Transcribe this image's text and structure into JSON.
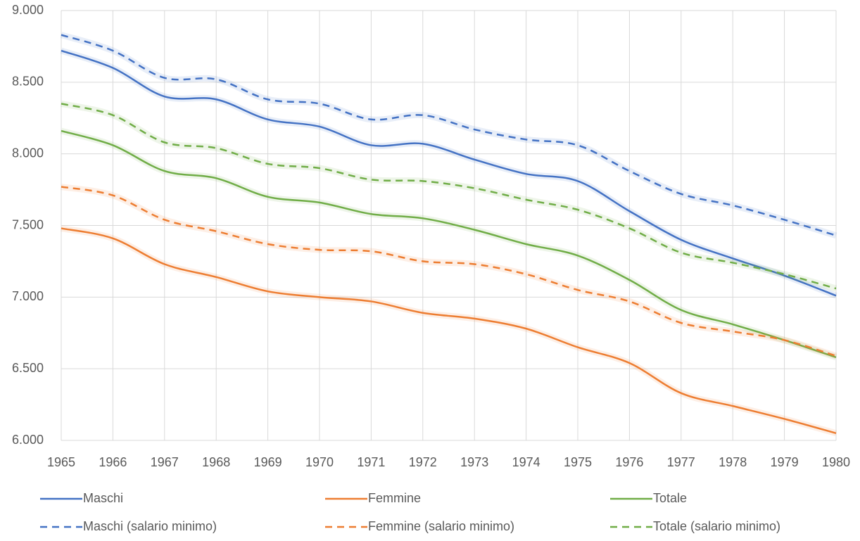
{
  "chart_data": {
    "type": "line",
    "categories": [
      "1965",
      "1966",
      "1967",
      "1968",
      "1969",
      "1970",
      "1971",
      "1972",
      "1973",
      "1974",
      "1975",
      "1976",
      "1977",
      "1978",
      "1979",
      "1980"
    ],
    "ylim": [
      6000,
      9000
    ],
    "yticks": [
      {
        "value": 6000,
        "label": "6.000"
      },
      {
        "value": 6500,
        "label": "6.500"
      },
      {
        "value": 7000,
        "label": "7.000"
      },
      {
        "value": 7500,
        "label": "7.500"
      },
      {
        "value": 8000,
        "label": "8.000"
      },
      {
        "value": 8500,
        "label": "8.500"
      },
      {
        "value": 9000,
        "label": "9.000"
      }
    ],
    "grid": true,
    "legend": "bottom",
    "series": [
      {
        "name": "Maschi",
        "color": "#4472c4",
        "dashed": false,
        "values": [
          8720,
          8600,
          8400,
          8380,
          8240,
          8190,
          8060,
          8070,
          7960,
          7860,
          7810,
          7600,
          7400,
          7270,
          7150,
          7010
        ]
      },
      {
        "name": "Femmine",
        "color": "#ed7d31",
        "dashed": false,
        "values": [
          7480,
          7410,
          7230,
          7140,
          7040,
          7000,
          6970,
          6890,
          6850,
          6780,
          6650,
          6540,
          6330,
          6240,
          6150,
          6050
        ]
      },
      {
        "name": "Totale",
        "color": "#70ad47",
        "dashed": false,
        "values": [
          8160,
          8060,
          7880,
          7830,
          7700,
          7660,
          7580,
          7550,
          7470,
          7370,
          7290,
          7120,
          6910,
          6810,
          6700,
          6580
        ]
      },
      {
        "name": "Maschi (salario minimo)",
        "color": "#4472c4",
        "dashed": true,
        "values": [
          8830,
          8720,
          8530,
          8520,
          8380,
          8350,
          8240,
          8270,
          8170,
          8100,
          8060,
          7880,
          7720,
          7640,
          7540,
          7430
        ]
      },
      {
        "name": "Femmine (salario minimo)",
        "color": "#ed7d31",
        "dashed": true,
        "values": [
          7770,
          7710,
          7540,
          7460,
          7370,
          7330,
          7320,
          7250,
          7230,
          7160,
          7050,
          6970,
          6820,
          6760,
          6700,
          6590
        ]
      },
      {
        "name": "Totale (salario minimo)",
        "color": "#70ad47",
        "dashed": true,
        "values": [
          8350,
          8270,
          8080,
          8040,
          7930,
          7900,
          7820,
          7810,
          7760,
          7680,
          7610,
          7480,
          7310,
          7240,
          7160,
          7060
        ]
      }
    ]
  }
}
